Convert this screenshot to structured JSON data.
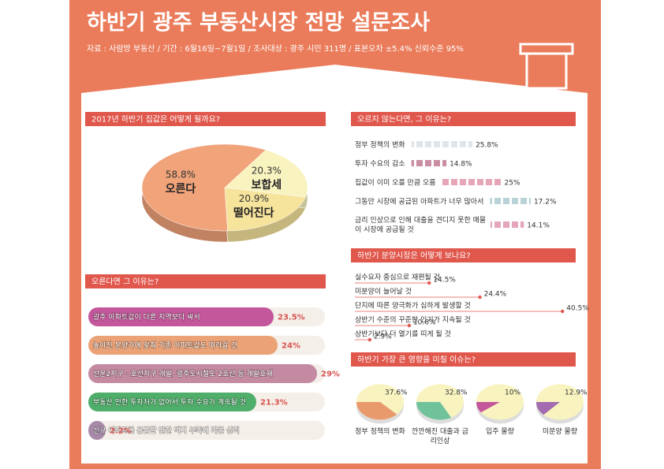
{
  "header": {
    "title": "하반기 광주 부동산시장 전망 설문조사",
    "source": "자료 : 사람방 부동산 / 기간 : 6월16일~7월1일 / 조사대상 : 광주 시민 311명 / 표본오차 ±5.4% 신뢰수준 95%"
  },
  "chart_data": [
    {
      "type": "pie",
      "title": "2017년 하반기 집값은 어떻게 될까요?",
      "categories": [
        "오른다",
        "보합세",
        "떨어진다"
      ],
      "values": [
        58.8,
        20.3,
        20.9
      ],
      "value_labels": [
        "58.8%",
        "20.3%",
        "20.9%"
      ],
      "colors": [
        "#f1a37a",
        "#f8f3bf",
        "#f6e39c"
      ]
    },
    {
      "type": "hbar",
      "title": "오른다면 그 이유는?",
      "categories": [
        "광주 아파트값이 다른 지역보다 싸서",
        "높아진 분양가에 맞춰 기존 아파트값도 따라갈 것",
        "선운2지구 · 호선지구 개발, 광주도시철도 2호선 등 개발호재",
        "부동산 만한 투자처가 없어서 투자 수요가 계속될 것",
        "신규 아파트를 공급할 만한 택지 부족에 따른 심리"
      ],
      "values": [
        23.5,
        24,
        29,
        21.3,
        2.2
      ],
      "value_labels": [
        "23.5%",
        "24%",
        "29%",
        "21.3%",
        "2.2%"
      ],
      "colors": [
        "#c4579b",
        "#eba277",
        "#c48aa2",
        "#4fae6a",
        "#a78aa8"
      ]
    },
    {
      "type": "dotbar",
      "title": "오르지 않는다면, 그 이유는?",
      "categories": [
        "정부 정책의 변화",
        "투자 수요의 감소",
        "집값이 이미 오를 만큼 오름",
        "그동안 시장에 공급된 아파트가 너무 많아서",
        "금리 인상으로 인해 대출을 견디지 못한 매물이 시장에 공급될 것"
      ],
      "values": [
        25.8,
        14.8,
        25,
        17.2,
        14.1
      ],
      "value_labels": [
        "25.8%",
        "14.8%",
        "25%",
        "17.2%",
        "14.1%"
      ],
      "colors": [
        "#dfe5ea",
        "#c98ea4",
        "#e7a6b8",
        "#b9d3d8",
        "#e4a6b8"
      ]
    },
    {
      "type": "lollipop",
      "title": "하반기 분양시장은 어떻게 보나요?",
      "categories": [
        "실수요자 중심으로 재편될 것",
        "미분양이 늘어날 것",
        "단지에 따른 양극화가 심하게 발생할 것",
        "상반기 수준의 꾸준한 인기가 지속될 것",
        "상반기보다 더 열기를 띠게 될 것"
      ],
      "values": [
        14.5,
        24.4,
        40.5,
        10.6,
        2.9
      ],
      "value_labels": [
        "14.5%",
        "24.4%",
        "40.5%",
        "10.6%",
        "2.9%"
      ],
      "color": "#e0574c"
    },
    {
      "type": "multipie",
      "title": "하반기 가장 큰 영향을 미칠 이슈는?",
      "categories": [
        "정부 정책의 변화",
        "깐깐해진 대출과 금리인상",
        "입주 물량",
        "미분양 물량"
      ],
      "values": [
        37.6,
        32.8,
        10,
        12.9
      ],
      "value_labels": [
        "37.6%",
        "32.8%",
        "10%",
        "12.9%"
      ],
      "colors": [
        "#e99a6c",
        "#6fc29a",
        "#c4579b",
        "#a36bb0"
      ],
      "base_color": "#f8f3bf"
    }
  ]
}
